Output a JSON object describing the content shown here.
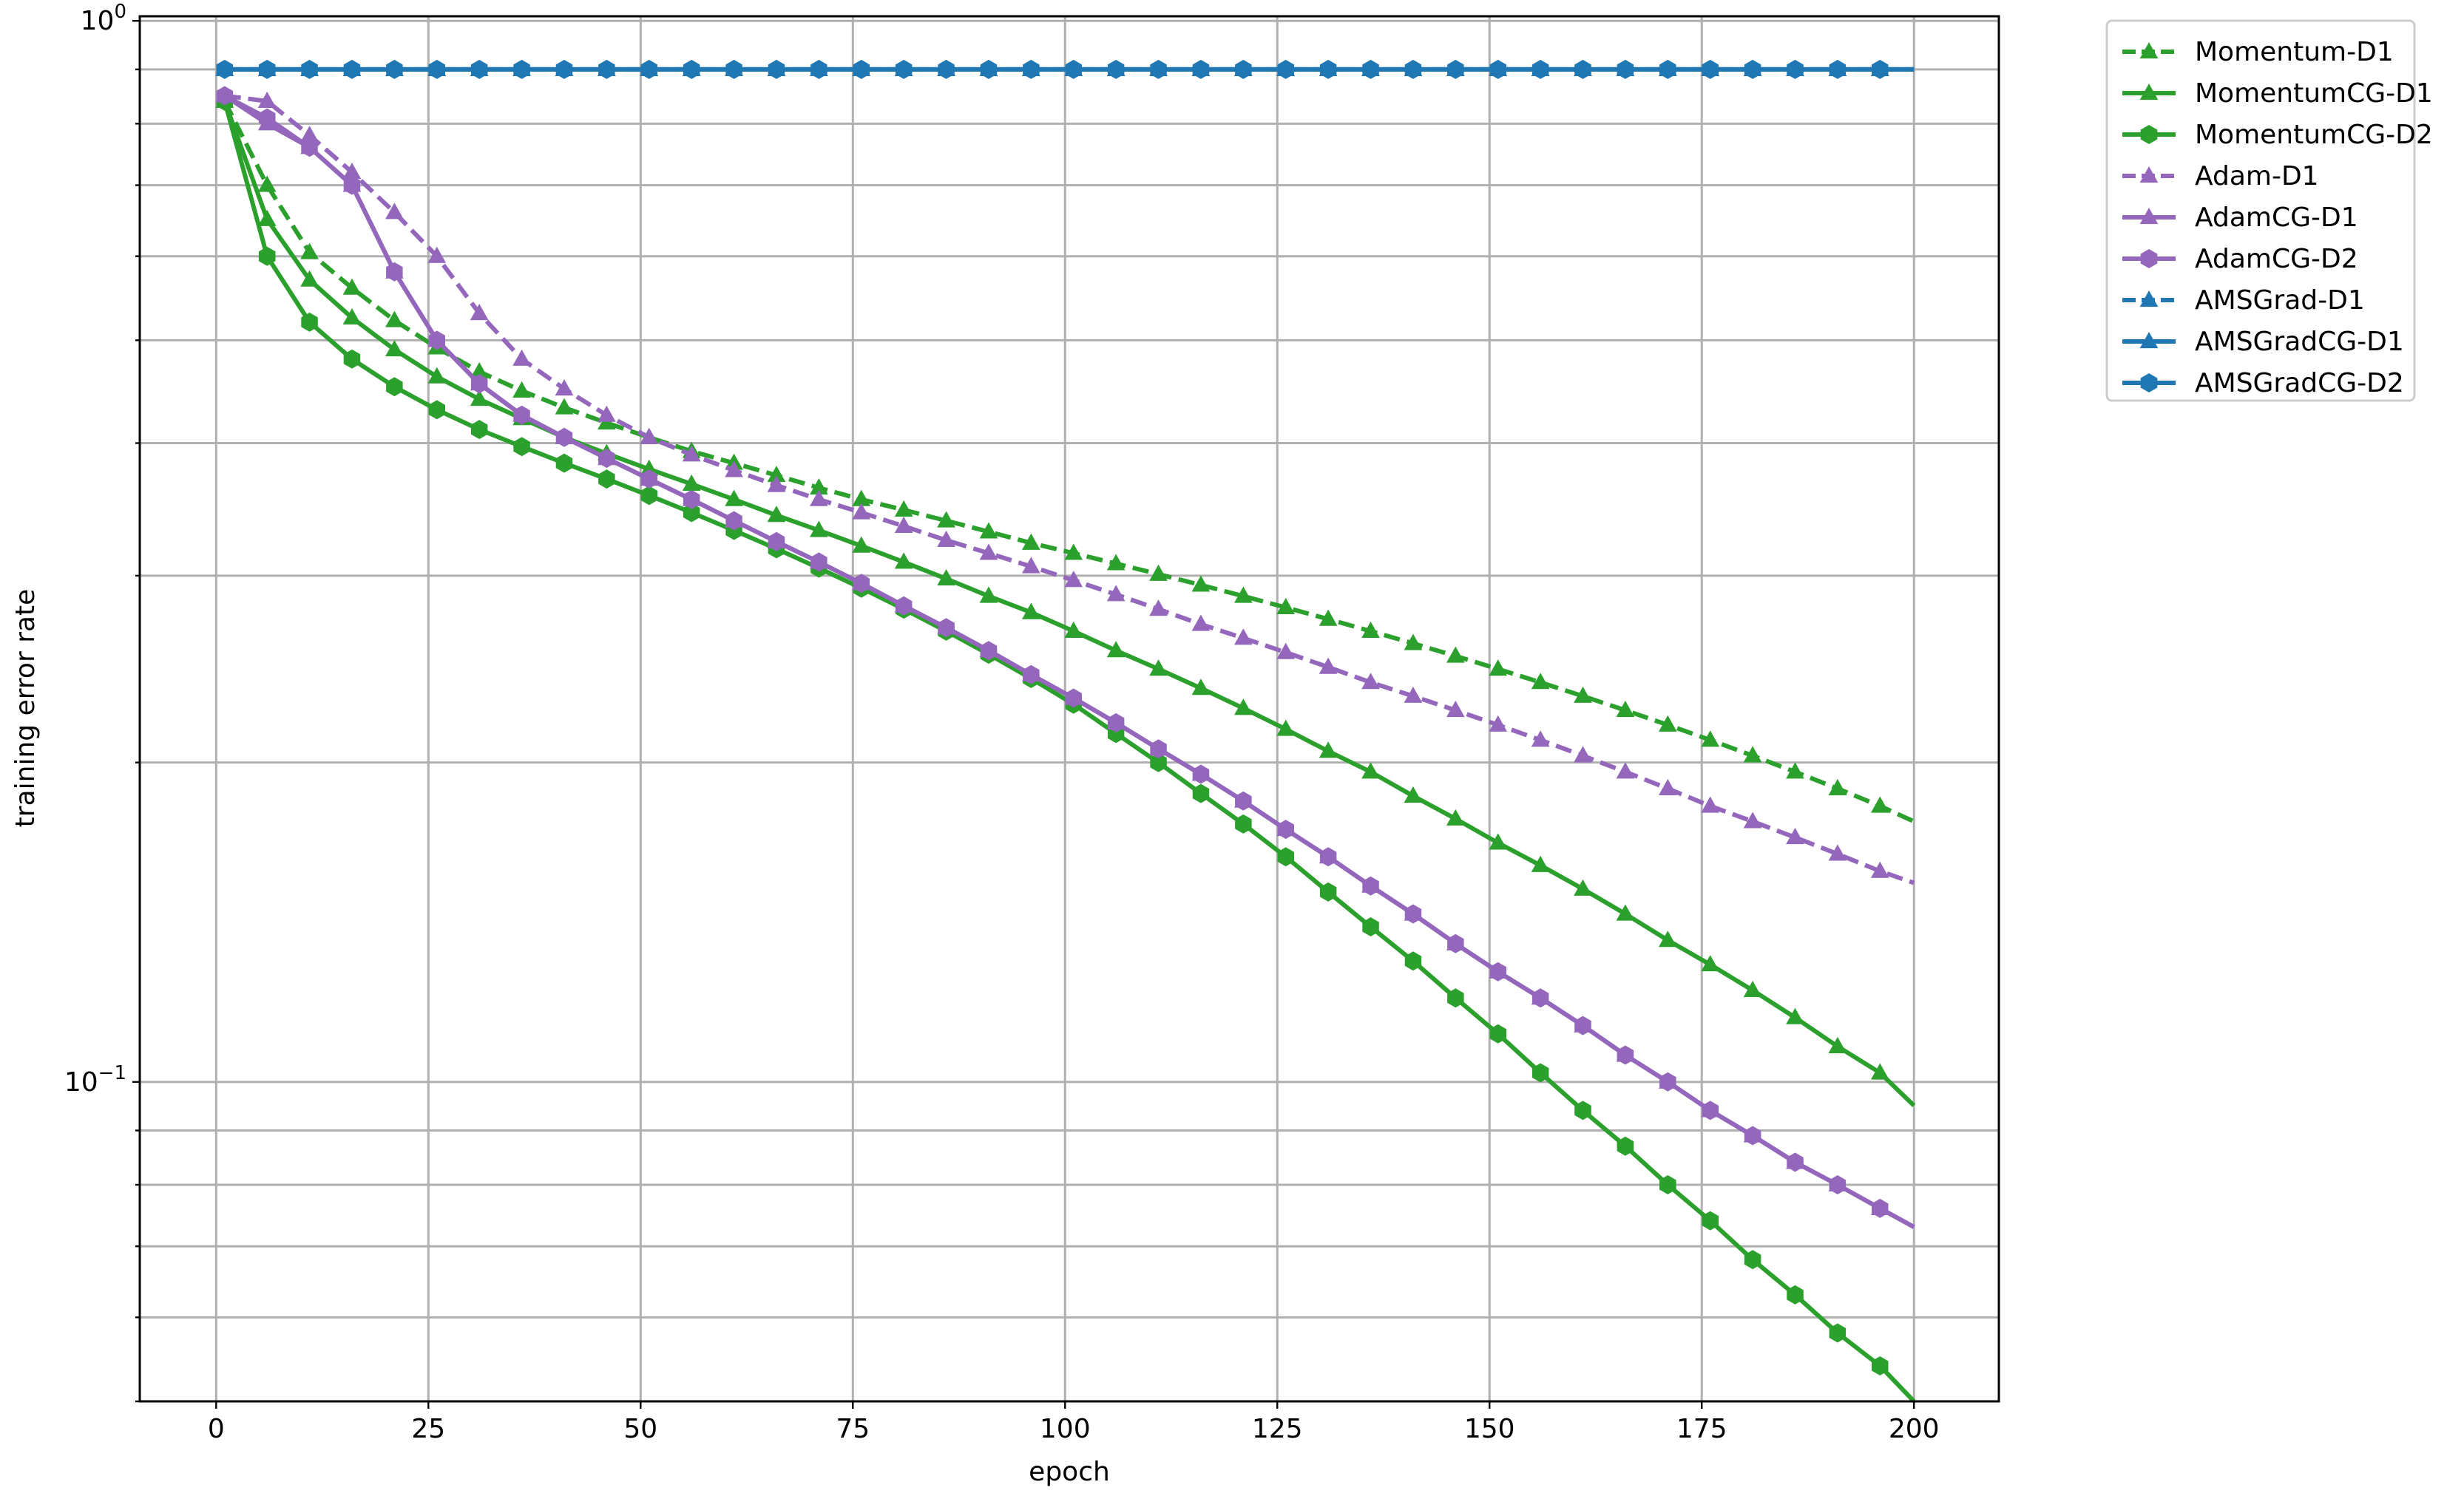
{
  "chart_data": {
    "type": "line",
    "xlabel": "epoch",
    "ylabel": "training error rate",
    "xlim": [
      -9,
      210
    ],
    "ylim": [
      0.05,
      1.01
    ],
    "yscale": "log",
    "grid": true,
    "legend_position": "outside top-right",
    "x_ticks": [
      "0",
      "25",
      "50",
      "75",
      "100",
      "125",
      "150",
      "175",
      "200"
    ],
    "y_major_ticks": [
      {
        "value": 1.0,
        "base": "10",
        "exp": "0"
      },
      {
        "value": 0.1,
        "base": "10",
        "exp": "−1"
      }
    ],
    "x": [
      1,
      6,
      11,
      16,
      21,
      26,
      31,
      36,
      41,
      46,
      51,
      56,
      61,
      66,
      71,
      76,
      81,
      86,
      91,
      96,
      101,
      106,
      111,
      116,
      121,
      126,
      131,
      136,
      141,
      146,
      151,
      156,
      161,
      166,
      171,
      176,
      181,
      186,
      191,
      196,
      200
    ],
    "series": [
      {
        "name": "Momentum-D1",
        "color": "#2ca02c",
        "dash": "dashed",
        "marker": "triangle",
        "values": [
          0.84,
          0.7,
          0.605,
          0.56,
          0.522,
          0.492,
          0.467,
          0.448,
          0.432,
          0.418,
          0.405,
          0.393,
          0.383,
          0.373,
          0.363,
          0.354,
          0.346,
          0.338,
          0.33,
          0.322,
          0.315,
          0.308,
          0.301,
          0.294,
          0.287,
          0.28,
          0.273,
          0.266,
          0.259,
          0.252,
          0.245,
          0.238,
          0.231,
          0.224,
          0.217,
          0.21,
          0.203,
          0.196,
          0.189,
          0.182,
          0.176
        ]
      },
      {
        "name": "MomentumCG-D1",
        "color": "#2ca02c",
        "dash": "solid",
        "marker": "triangle",
        "values": [
          0.84,
          0.65,
          0.57,
          0.525,
          0.49,
          0.462,
          0.44,
          0.422,
          0.405,
          0.391,
          0.378,
          0.366,
          0.354,
          0.342,
          0.331,
          0.32,
          0.309,
          0.298,
          0.287,
          0.277,
          0.266,
          0.255,
          0.245,
          0.235,
          0.225,
          0.215,
          0.205,
          0.196,
          0.186,
          0.177,
          0.168,
          0.16,
          0.152,
          0.144,
          0.136,
          0.129,
          0.122,
          0.115,
          0.108,
          0.102,
          0.095
        ]
      },
      {
        "name": "MomentumCG-D2",
        "color": "#2ca02c",
        "dash": "solid",
        "marker": "hexagon",
        "values": [
          0.84,
          0.6,
          0.52,
          0.48,
          0.452,
          0.43,
          0.412,
          0.397,
          0.383,
          0.37,
          0.357,
          0.344,
          0.331,
          0.318,
          0.305,
          0.292,
          0.279,
          0.266,
          0.253,
          0.24,
          0.227,
          0.213,
          0.2,
          0.187,
          0.175,
          0.163,
          0.151,
          0.14,
          0.13,
          0.12,
          0.111,
          0.102,
          0.094,
          0.087,
          0.08,
          0.074,
          0.068,
          0.063,
          0.058,
          0.054,
          0.05
        ]
      },
      {
        "name": "Adam-D1",
        "color": "#9467bd",
        "dash": "dashed",
        "marker": "triangle",
        "values": [
          0.85,
          0.84,
          0.78,
          0.72,
          0.66,
          0.6,
          0.53,
          0.48,
          0.45,
          0.425,
          0.405,
          0.39,
          0.377,
          0.365,
          0.354,
          0.344,
          0.334,
          0.324,
          0.315,
          0.306,
          0.297,
          0.288,
          0.279,
          0.27,
          0.262,
          0.254,
          0.246,
          0.238,
          0.231,
          0.224,
          0.217,
          0.21,
          0.203,
          0.196,
          0.189,
          0.182,
          0.176,
          0.17,
          0.164,
          0.158,
          0.154
        ]
      },
      {
        "name": "AdamCG-D1",
        "color": "#9467bd",
        "dash": "solid",
        "marker": "triangle",
        "values": [
          0.85,
          0.8,
          0.76,
          0.7,
          0.58,
          0.5,
          0.455,
          0.425,
          0.405,
          0.387,
          0.37,
          0.354,
          0.338,
          0.323,
          0.309,
          0.295,
          0.281,
          0.268,
          0.255,
          0.242,
          0.23,
          0.218,
          0.206,
          0.195,
          0.184,
          0.173,
          0.163,
          0.153,
          0.144,
          0.135,
          0.127,
          0.12,
          0.113,
          0.106,
          0.1,
          0.094,
          0.089,
          0.084,
          0.08,
          0.076,
          0.073
        ]
      },
      {
        "name": "AdamCG-D2",
        "color": "#9467bd",
        "dash": "solid",
        "marker": "hexagon",
        "values": [
          0.85,
          0.81,
          0.76,
          0.7,
          0.58,
          0.5,
          0.455,
          0.425,
          0.405,
          0.387,
          0.37,
          0.354,
          0.338,
          0.323,
          0.309,
          0.295,
          0.281,
          0.268,
          0.255,
          0.242,
          0.23,
          0.218,
          0.206,
          0.195,
          0.184,
          0.173,
          0.163,
          0.153,
          0.144,
          0.135,
          0.127,
          0.12,
          0.113,
          0.106,
          0.1,
          0.094,
          0.089,
          0.084,
          0.08,
          0.076,
          0.073
        ]
      },
      {
        "name": "AMSGrad-D1",
        "color": "#1f77b4",
        "dash": "dashed",
        "marker": "triangle",
        "values": [
          0.9,
          0.9,
          0.9,
          0.9,
          0.9,
          0.9,
          0.9,
          0.9,
          0.9,
          0.9,
          0.9,
          0.9,
          0.9,
          0.9,
          0.9,
          0.9,
          0.9,
          0.9,
          0.9,
          0.9,
          0.9,
          0.9,
          0.9,
          0.9,
          0.9,
          0.9,
          0.9,
          0.9,
          0.9,
          0.9,
          0.9,
          0.9,
          0.9,
          0.9,
          0.9,
          0.9,
          0.9,
          0.9,
          0.9,
          0.9,
          0.9
        ]
      },
      {
        "name": "AMSGradCG-D1",
        "color": "#1f77b4",
        "dash": "solid",
        "marker": "triangle",
        "values": [
          0.9,
          0.9,
          0.9,
          0.9,
          0.9,
          0.9,
          0.9,
          0.9,
          0.9,
          0.9,
          0.9,
          0.9,
          0.9,
          0.9,
          0.9,
          0.9,
          0.9,
          0.9,
          0.9,
          0.9,
          0.9,
          0.9,
          0.9,
          0.9,
          0.9,
          0.9,
          0.9,
          0.9,
          0.9,
          0.9,
          0.9,
          0.9,
          0.9,
          0.9,
          0.9,
          0.9,
          0.9,
          0.9,
          0.9,
          0.9,
          0.9
        ]
      },
      {
        "name": "AMSGradCG-D2",
        "color": "#1f77b4",
        "dash": "solid",
        "marker": "hexagon",
        "values": [
          0.9,
          0.9,
          0.9,
          0.9,
          0.9,
          0.9,
          0.9,
          0.9,
          0.9,
          0.9,
          0.9,
          0.9,
          0.9,
          0.9,
          0.9,
          0.9,
          0.9,
          0.9,
          0.9,
          0.9,
          0.9,
          0.9,
          0.9,
          0.9,
          0.9,
          0.9,
          0.9,
          0.9,
          0.9,
          0.9,
          0.9,
          0.9,
          0.9,
          0.9,
          0.9,
          0.9,
          0.9,
          0.9,
          0.9,
          0.9,
          0.9
        ]
      }
    ]
  }
}
